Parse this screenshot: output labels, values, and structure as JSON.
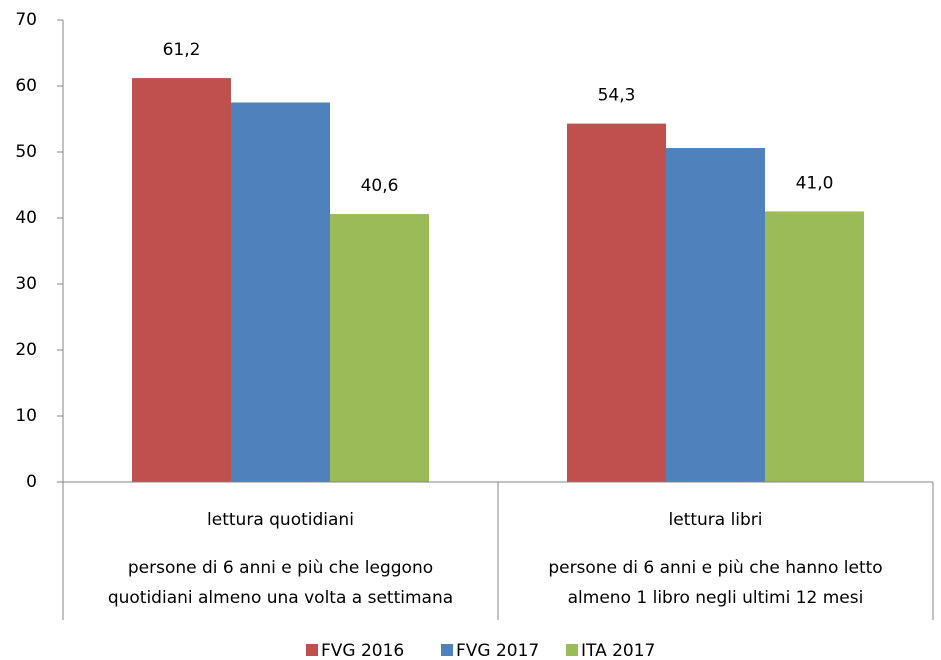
{
  "chart_data": {
    "type": "bar",
    "categories": [
      "lettura quotidiani",
      "lettura libri"
    ],
    "category_notes": [
      [
        "persone di 6 anni e più che leggono",
        "quotidiani almeno una volta a settimana"
      ],
      [
        "persone di 6 anni e più che hanno letto",
        "almeno 1 libro negli ultimi 12 mesi"
      ]
    ],
    "series": [
      {
        "name": "FVG 2016",
        "color": "#c0504d",
        "values": [
          61.2,
          54.3
        ],
        "value_labels": [
          "61,2",
          "54,3"
        ]
      },
      {
        "name": "FVG 2017",
        "color": "#4f81bd",
        "values": [
          57.5,
          50.6
        ]
      },
      {
        "name": "ITA 2017",
        "color": "#9bbb59",
        "values": [
          40.6,
          41.0
        ],
        "value_labels": [
          "40,6",
          "41,0"
        ]
      }
    ],
    "ylim": [
      0,
      70
    ],
    "yticks": [
      0,
      10,
      20,
      30,
      40,
      50,
      60,
      70
    ],
    "grid": false,
    "legend": "bottom"
  }
}
